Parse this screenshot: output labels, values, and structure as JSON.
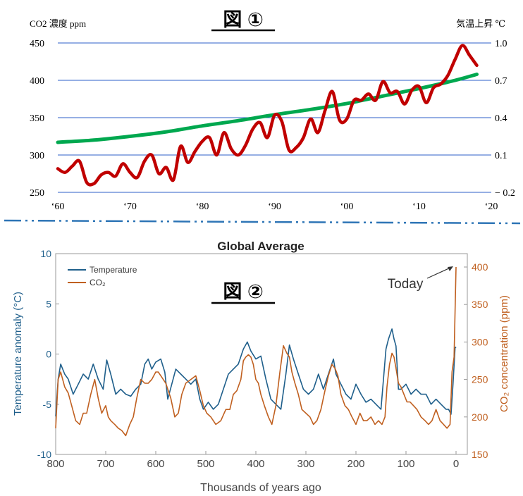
{
  "chart_data": [
    {
      "type": "line",
      "figure_label": "図 ①",
      "ylabel_left": "CO2 濃度 ppm",
      "ylabel_right": "気温上昇 ℃",
      "x": [
        1960,
        2020
      ],
      "xlim": [
        1960,
        2020
      ],
      "xtick_values": [
        1960,
        1970,
        1980,
        1990,
        2000,
        2010,
        2020
      ],
      "xtick_labels": [
        "‘60",
        "‘70",
        "‘80",
        "‘90",
        "‘00",
        "‘10",
        "‘20"
      ],
      "ylim_left": [
        250,
        450
      ],
      "yticks_left": [
        "450",
        "400",
        "350",
        "300",
        "250"
      ],
      "ylim_right": [
        -0.2,
        1.0
      ],
      "yticks_right": [
        "1.0",
        "0.7",
        "0.4",
        "0.1",
        "− 0.2"
      ],
      "grid": true,
      "series": [
        {
          "color": "#00a84f",
          "axis": "left",
          "x": [
            1960,
            1965,
            1970,
            1975,
            1980,
            1985,
            1990,
            1995,
            2000,
            2005,
            2010,
            2015,
            2018
          ],
          "values": [
            317,
            320,
            325,
            331,
            339,
            346,
            354,
            361,
            369,
            379,
            389,
            400,
            408
          ]
        },
        {
          "color": "#c00000",
          "axis": "right",
          "x": [
            1960,
            1961,
            1962,
            1963,
            1964,
            1965,
            1966,
            1967,
            1968,
            1969,
            1970,
            1971,
            1972,
            1973,
            1974,
            1975,
            1976,
            1977,
            1978,
            1979,
            1980,
            1981,
            1982,
            1983,
            1984,
            1985,
            1986,
            1987,
            1988,
            1989,
            1990,
            1991,
            1992,
            1993,
            1994,
            1995,
            1996,
            1997,
            1998,
            1999,
            2000,
            2001,
            2002,
            2003,
            2004,
            2005,
            2006,
            2007,
            2008,
            2009,
            2010,
            2011,
            2012,
            2013,
            2014,
            2015,
            2016,
            2017,
            2018
          ],
          "values": [
            -0.01,
            -0.04,
            0.01,
            0.05,
            -0.12,
            -0.13,
            -0.06,
            -0.04,
            -0.07,
            0.03,
            -0.04,
            -0.08,
            0.05,
            0.1,
            -0.05,
            0.0,
            -0.1,
            0.17,
            0.04,
            0.13,
            0.21,
            0.24,
            0.1,
            0.28,
            0.15,
            0.1,
            0.18,
            0.31,
            0.36,
            0.24,
            0.42,
            0.37,
            0.14,
            0.16,
            0.24,
            0.39,
            0.28,
            0.46,
            0.61,
            0.38,
            0.39,
            0.54,
            0.54,
            0.59,
            0.54,
            0.69,
            0.6,
            0.61,
            0.51,
            0.62,
            0.65,
            0.52,
            0.64,
            0.67,
            0.74,
            0.87,
            0.98,
            0.9,
            0.82
          ]
        }
      ]
    },
    {
      "type": "line",
      "title": "Global Average",
      "figure_label": "図 ②",
      "annotation": "Today",
      "xlabel": "Thousands of years ago",
      "ylabel_left": "Temperature anomaly (°C)",
      "ylabel_right": "CO₂ concentration (ppm)",
      "xlim": [
        800,
        0
      ],
      "xticks": [
        "800",
        "700",
        "600",
        "500",
        "400",
        "300",
        "200",
        "100",
        "0"
      ],
      "ylim_left": [
        -10,
        10
      ],
      "yticks_left": [
        "10",
        "5",
        "0",
        "-5",
        "-10"
      ],
      "ylim_right": [
        150,
        400
      ],
      "yticks_right": [
        "400",
        "350",
        "300",
        "250",
        "200",
        "150"
      ],
      "legend_position": "top-left",
      "series": [
        {
          "name": "Temperature",
          "color": "#1f5f8b",
          "axis": "left",
          "x": [
            800,
            795,
            790,
            782,
            775,
            765,
            755,
            745,
            735,
            725,
            715,
            705,
            698,
            690,
            680,
            670,
            660,
            650,
            640,
            630,
            622,
            615,
            608,
            600,
            590,
            582,
            576,
            568,
            560,
            550,
            540,
            530,
            520,
            512,
            505,
            495,
            485,
            475,
            465,
            455,
            445,
            435,
            425,
            417,
            410,
            400,
            390,
            380,
            370,
            360,
            350,
            340,
            333,
            325,
            315,
            305,
            295,
            285,
            275,
            265,
            255,
            245,
            240,
            230,
            220,
            210,
            200,
            190,
            180,
            170,
            160,
            150,
            140,
            135,
            128,
            124,
            120,
            115,
            110,
            100,
            90,
            80,
            70,
            60,
            50,
            40,
            30,
            20,
            15,
            10,
            6,
            2,
            0
          ],
          "values": [
            -6.2,
            -2.5,
            -1.0,
            -2.0,
            -2.5,
            -4.0,
            -3.0,
            -2.0,
            -2.5,
            -1.0,
            -2.5,
            -3.5,
            -0.6,
            -2.0,
            -4.0,
            -3.5,
            -4.0,
            -4.2,
            -3.5,
            -3.0,
            -1.0,
            -0.5,
            -1.5,
            -0.8,
            -0.5,
            -1.8,
            -4.5,
            -3.0,
            -1.5,
            -2.0,
            -2.5,
            -3.0,
            -2.5,
            -4.5,
            -5.5,
            -4.8,
            -5.5,
            -5.0,
            -3.5,
            -2.0,
            -1.5,
            -1.0,
            0.5,
            1.2,
            0.3,
            -0.5,
            -0.2,
            -2.5,
            -4.5,
            -5.0,
            -5.5,
            -2.0,
            0.9,
            -0.5,
            -2.0,
            -3.5,
            -4.0,
            -3.5,
            -2.0,
            -3.5,
            -2.0,
            -0.5,
            -2.0,
            -3.0,
            -4.0,
            -4.5,
            -3.0,
            -4.0,
            -4.8,
            -4.5,
            -5.0,
            -5.5,
            0.5,
            1.5,
            2.5,
            1.5,
            0.8,
            -3.5,
            -3.5,
            -3.0,
            -4.0,
            -3.5,
            -4.0,
            -4.0,
            -5.0,
            -4.5,
            -5.0,
            -5.5,
            -5.5,
            -6.0,
            -3.0,
            0.6,
            0.7
          ]
        },
        {
          "name": "CO₂",
          "color": "#c06020",
          "axis": "right",
          "x": [
            800,
            795,
            790,
            782,
            775,
            768,
            760,
            752,
            745,
            738,
            730,
            722,
            715,
            708,
            700,
            695,
            690,
            682,
            675,
            668,
            660,
            652,
            645,
            638,
            630,
            622,
            615,
            608,
            600,
            595,
            590,
            580,
            570,
            562,
            555,
            548,
            540,
            530,
            520,
            512,
            505,
            498,
            490,
            480,
            470,
            460,
            452,
            445,
            438,
            430,
            425,
            420,
            415,
            410,
            405,
            400,
            395,
            390,
            383,
            375,
            368,
            360,
            352,
            345,
            338,
            333,
            328,
            322,
            315,
            308,
            300,
            292,
            285,
            278,
            270,
            262,
            255,
            248,
            242,
            236,
            230,
            222,
            215,
            208,
            200,
            192,
            185,
            178,
            170,
            162,
            155,
            148,
            142,
            138,
            133,
            128,
            124,
            120,
            115,
            110,
            104,
            98,
            92,
            85,
            78,
            70,
            62,
            55,
            48,
            40,
            32,
            25,
            18,
            12,
            8,
            4,
            0
          ],
          "values": [
            185,
            250,
            260,
            240,
            232,
            215,
            195,
            190,
            205,
            205,
            230,
            250,
            225,
            205,
            215,
            200,
            195,
            190,
            185,
            182,
            175,
            190,
            200,
            225,
            250,
            245,
            245,
            250,
            260,
            260,
            255,
            245,
            225,
            200,
            205,
            230,
            245,
            250,
            255,
            235,
            215,
            205,
            200,
            190,
            195,
            210,
            210,
            230,
            235,
            250,
            275,
            280,
            283,
            280,
            270,
            250,
            245,
            230,
            215,
            200,
            190,
            215,
            260,
            295,
            285,
            280,
            260,
            245,
            230,
            210,
            205,
            200,
            190,
            195,
            210,
            235,
            255,
            270,
            265,
            255,
            230,
            215,
            210,
            200,
            190,
            205,
            195,
            195,
            200,
            190,
            195,
            190,
            200,
            240,
            270,
            285,
            280,
            265,
            245,
            240,
            230,
            220,
            220,
            215,
            210,
            200,
            195,
            190,
            195,
            210,
            195,
            190,
            185,
            190,
            260,
            280,
            400
          ]
        }
      ]
    }
  ]
}
